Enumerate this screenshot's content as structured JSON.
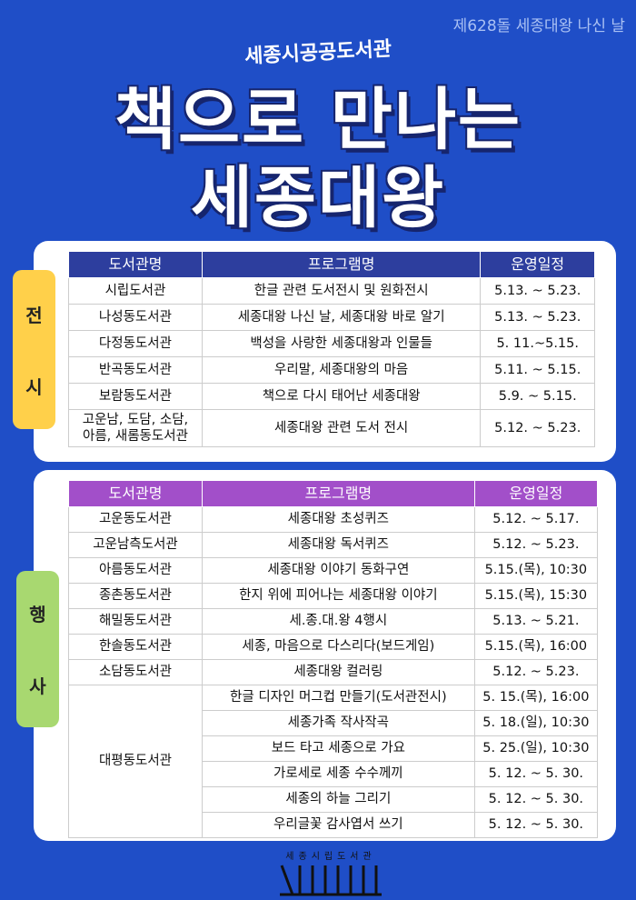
{
  "header": {
    "top_note": "제628돌 세종대왕 나신 날",
    "subtitle": "세종시공공도서관",
    "title_lines": [
      "책으로 만나는",
      "세종대왕"
    ]
  },
  "exhibition": {
    "label": [
      "전",
      "시"
    ],
    "columns": [
      "도서관명",
      "프로그램명",
      "운영일정"
    ],
    "rows": [
      [
        "시립도서관",
        "한글 관련 도서전시 및 원화전시",
        "5.13. ~ 5.23."
      ],
      [
        "나성동도서관",
        "세종대왕 나신 날, 세종대왕 바로 알기",
        "5.13. ~ 5.23."
      ],
      [
        "다정동도서관",
        "백성을 사랑한 세종대왕과 인물들",
        "5. 11.~5.15."
      ],
      [
        "반곡동도서관",
        "우리말, 세종대왕의 마음",
        "5.11. ~ 5.15."
      ],
      [
        "보람동도서관",
        "책으로 다시 태어난 세종대왕",
        "5.9. ~ 5.15."
      ],
      [
        [
          "고운남, 도담, 소담,",
          "아름, 새롬동도서관"
        ],
        "세종대왕 관련 도서 전시",
        "5.12. ~ 5.23."
      ]
    ]
  },
  "events": {
    "label": [
      "행",
      "사"
    ],
    "columns": [
      "도서관명",
      "프로그램명",
      "운영일정"
    ],
    "rows": [
      [
        "고운동도서관",
        "세종대왕 초성퀴즈",
        "5.12. ~ 5.17."
      ],
      [
        "고운남측도서관",
        "세종대왕 독서퀴즈",
        "5.12. ~ 5.23."
      ],
      [
        "아름동도서관",
        "세종대왕 이야기 동화구연",
        "5.15.(목), 10:30"
      ],
      [
        "종촌동도서관",
        "한지 위에 피어나는 세종대왕 이야기",
        "5.15.(목), 15:30"
      ],
      [
        "해밀동도서관",
        "세.종.대.왕 4행시",
        "5.13. ~ 5.21."
      ],
      [
        "한솔동도서관",
        "세종, 마음으로 다스리다(보드게임)",
        "5.15.(목), 16:00"
      ],
      [
        "소담동도서관",
        "세종대왕 컬러링",
        "5.12. ~ 5.23."
      ],
      [
        "대평동도서관",
        "한글 디자인 머그컵 만들기(도서관전시)",
        "5. 15.(목), 16:00"
      ],
      [
        null,
        "세종가족 작사작곡",
        "5. 18.(일), 10:30"
      ],
      [
        null,
        "보드 타고 세종으로 가요",
        "5. 25.(일), 10:30"
      ],
      [
        null,
        "가로세로 세종 수수께끼",
        "5. 12. ~ 5. 30."
      ],
      [
        null,
        "세종의 하늘 그리기",
        "5. 12. ~ 5. 30."
      ],
      [
        null,
        "우리글꽃 감사엽서 쓰기",
        "5. 12. ~ 5. 30."
      ]
    ]
  },
  "footer": {
    "logo": "세종시립도서관"
  }
}
